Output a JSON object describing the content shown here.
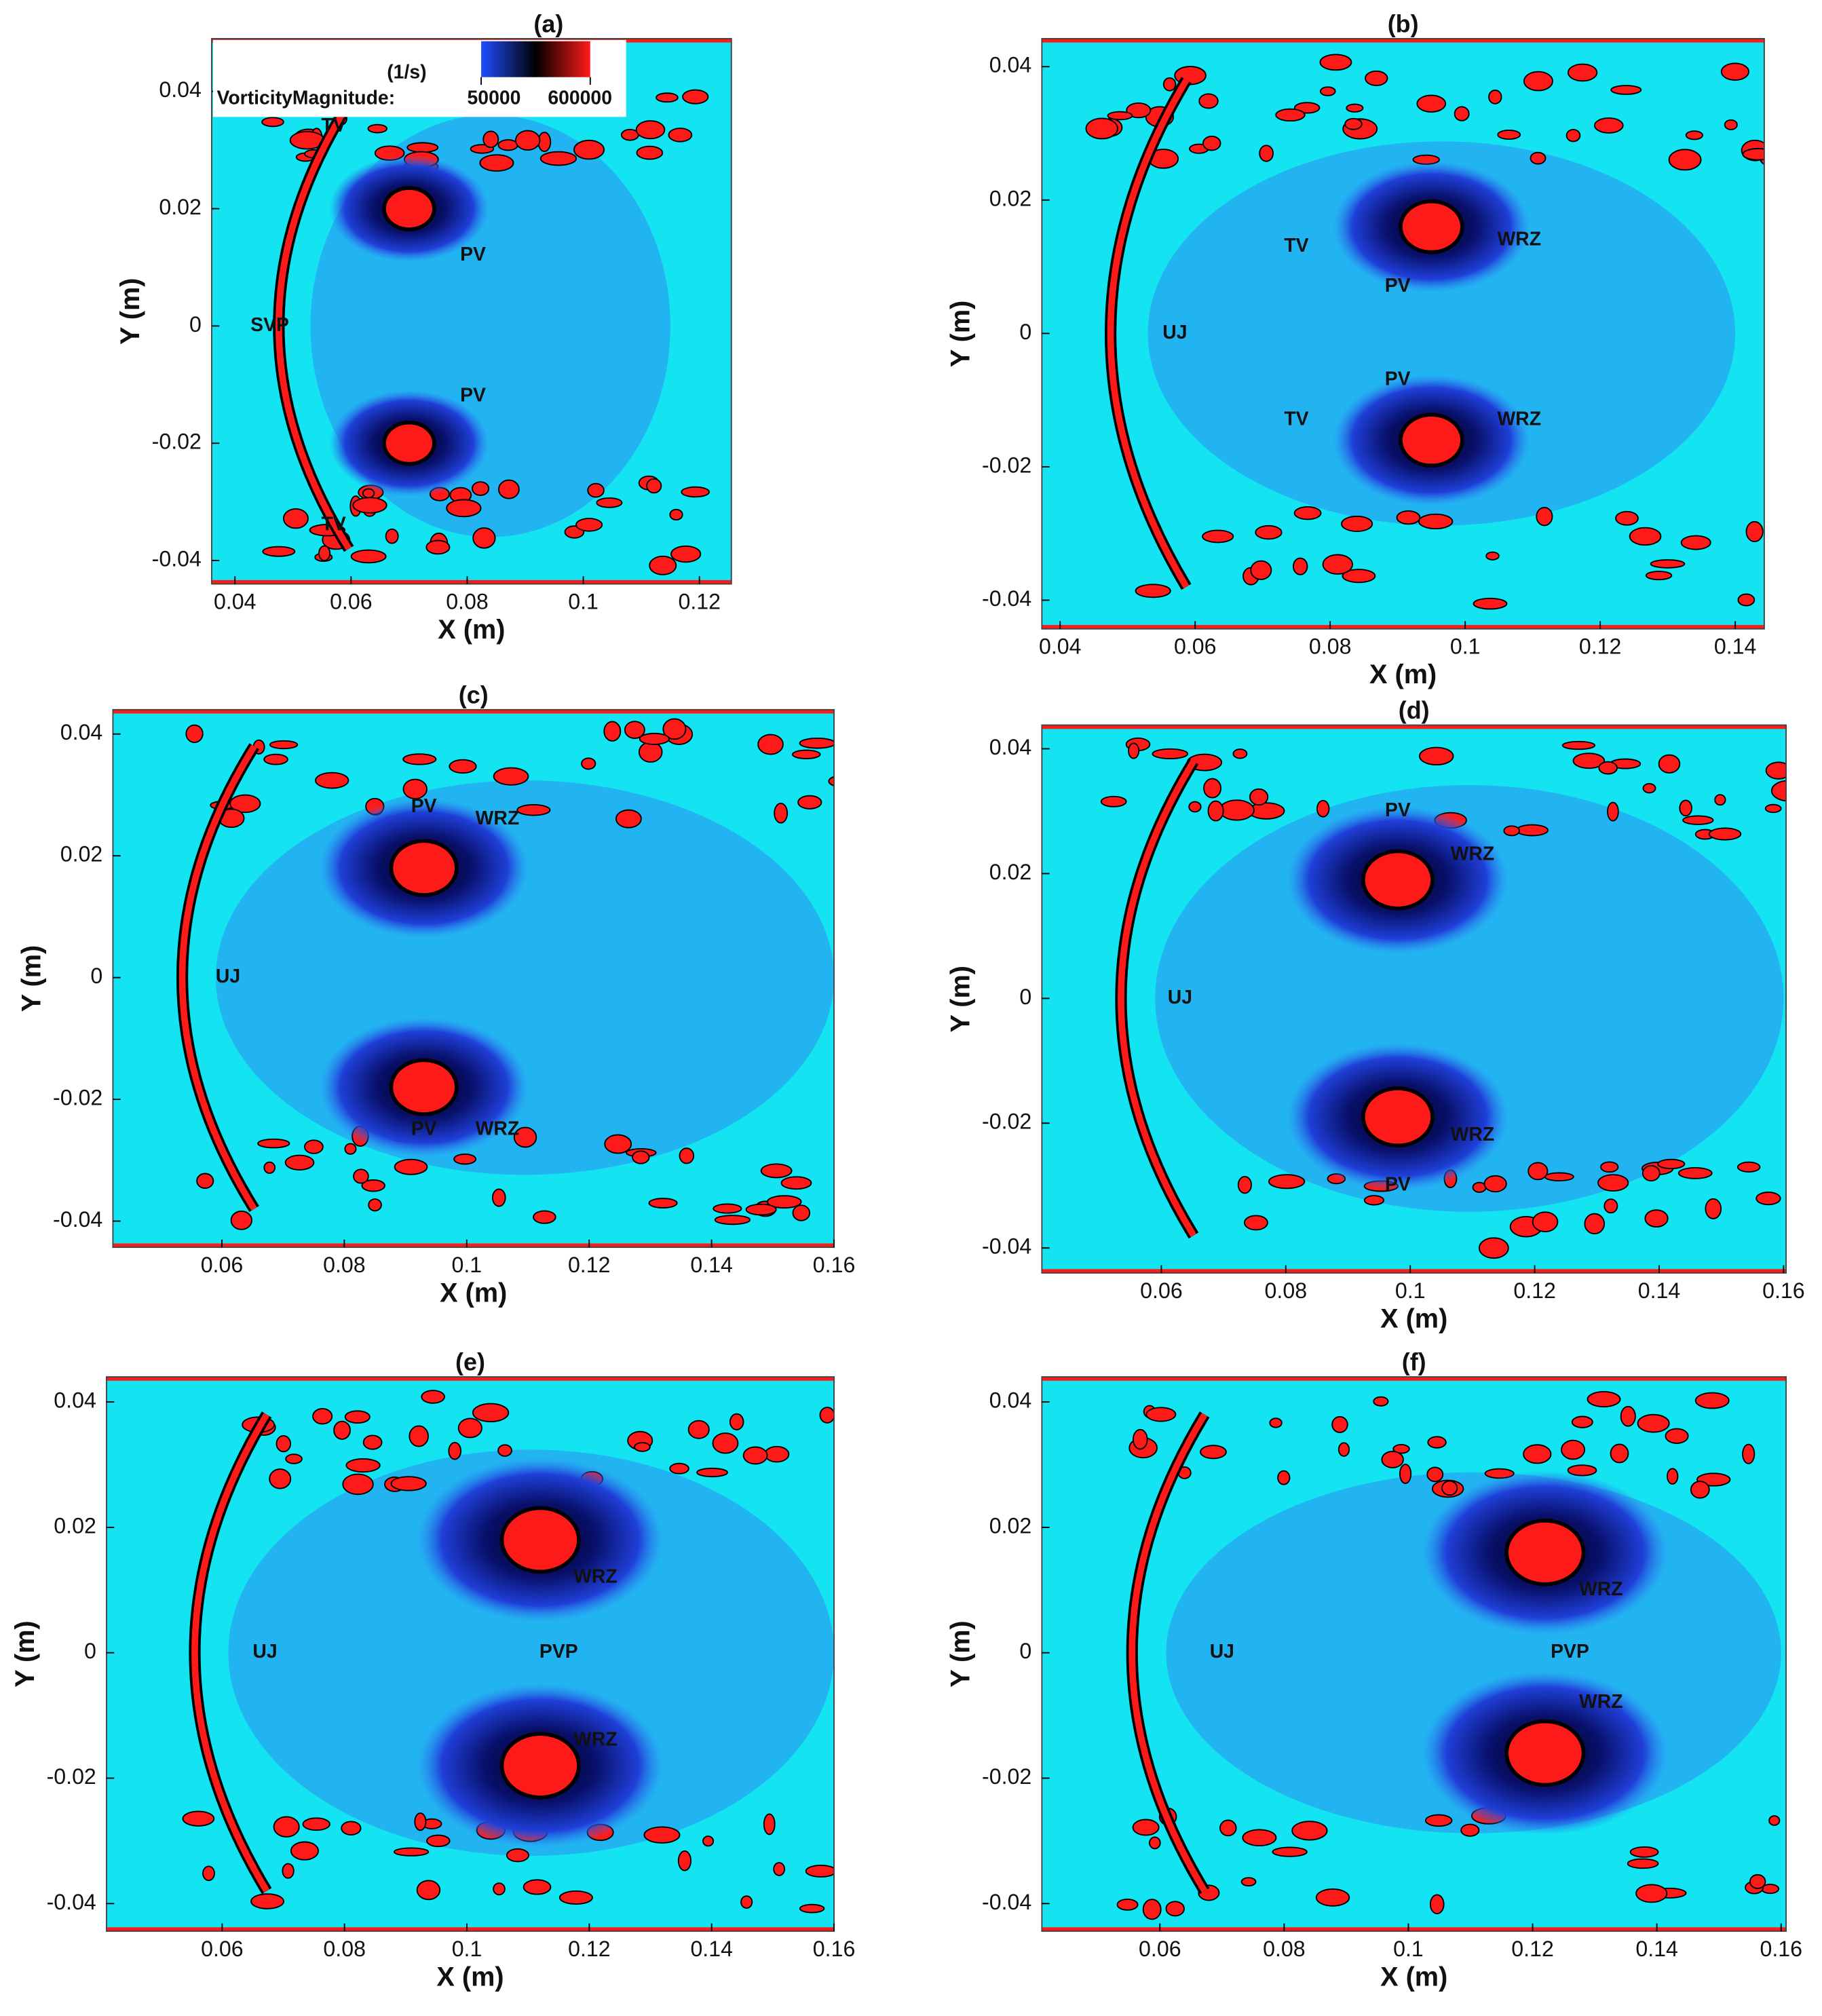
{
  "chart_data": [
    {
      "type": "field",
      "title": "(a)",
      "xlabel": "X (m)",
      "ylabel": "Y (m)",
      "xlim": [
        0.036,
        0.1255
      ],
      "ylim": [
        -0.044,
        0.049
      ],
      "xticks": [
        0.04,
        0.06,
        0.08,
        0.1,
        0.12
      ],
      "yticks": [
        -0.04,
        -0.02,
        0,
        0.02,
        0.04
      ],
      "annotations": [
        "TV",
        "PV",
        "SVP",
        "PV",
        "TV"
      ],
      "colorbar": {
        "title": "VorticityMagnitude:",
        "unit": "(1/s)",
        "ticks": [
          50000,
          600000
        ],
        "colors": [
          "#1f4dff",
          "#000000",
          "#ff1a1a"
        ]
      }
    },
    {
      "type": "field",
      "title": "(b)",
      "xlabel": "X (m)",
      "ylabel": "Y (m)",
      "xlim": [
        0.0373,
        0.1443
      ],
      "ylim": [
        -0.0443,
        0.0442
      ],
      "xticks": [
        0.04,
        0.06,
        0.08,
        0.1,
        0.12,
        0.14
      ],
      "yticks": [
        -0.04,
        -0.02,
        0,
        0.02,
        0.04
      ],
      "annotations": [
        "TV",
        "PV",
        "WRZ",
        "UJ",
        "PV",
        "TV",
        "WRZ"
      ]
    },
    {
      "type": "field",
      "title": "(c)",
      "xlabel": "X (m)",
      "ylabel": "Y (m)",
      "xlim": [
        0.0422,
        0.16
      ],
      "ylim": [
        -0.0443,
        0.044
      ],
      "xticks": [
        0.06,
        0.08,
        0.1,
        0.12,
        0.14,
        0.16
      ],
      "yticks": [
        -0.04,
        -0.02,
        0,
        0.02,
        0.04
      ],
      "annotations": [
        "PV",
        "WRZ",
        "UJ",
        "PV",
        "WRZ"
      ]
    },
    {
      "type": "field",
      "title": "(d)",
      "xlabel": "X (m)",
      "ylabel": "Y (m)",
      "xlim": [
        0.0408,
        0.1604
      ],
      "ylim": [
        -0.044,
        0.0438
      ],
      "xticks": [
        0.06,
        0.08,
        0.1,
        0.12,
        0.14,
        0.16
      ],
      "yticks": [
        -0.04,
        -0.02,
        0,
        0.02,
        0.04
      ],
      "annotations": [
        "PV",
        "WRZ",
        "UJ",
        "WRZ",
        "PV"
      ]
    },
    {
      "type": "field",
      "title": "(e)",
      "xlabel": "X (m)",
      "ylabel": "Y (m)",
      "xlim": [
        0.0411,
        0.16
      ],
      "ylim": [
        -0.0444,
        0.044
      ],
      "xticks": [
        0.06,
        0.08,
        0.1,
        0.12,
        0.14,
        0.16
      ],
      "yticks": [
        -0.04,
        -0.02,
        0,
        0.02,
        0.04
      ],
      "annotations": [
        "WRZ",
        "UJ",
        "PVP",
        "WRZ"
      ]
    },
    {
      "type": "field",
      "title": "(f)",
      "xlabel": "X (m)",
      "ylabel": "Y (m)",
      "xlim": [
        0.041,
        0.1608
      ],
      "ylim": [
        -0.0444,
        0.044
      ],
      "xticks": [
        0.06,
        0.08,
        0.1,
        0.12,
        0.14,
        0.16
      ],
      "yticks": [
        -0.04,
        -0.02,
        0,
        0.02,
        0.04
      ],
      "annotations": [
        "WRZ",
        "UJ",
        "PVP",
        "WRZ"
      ]
    }
  ]
}
